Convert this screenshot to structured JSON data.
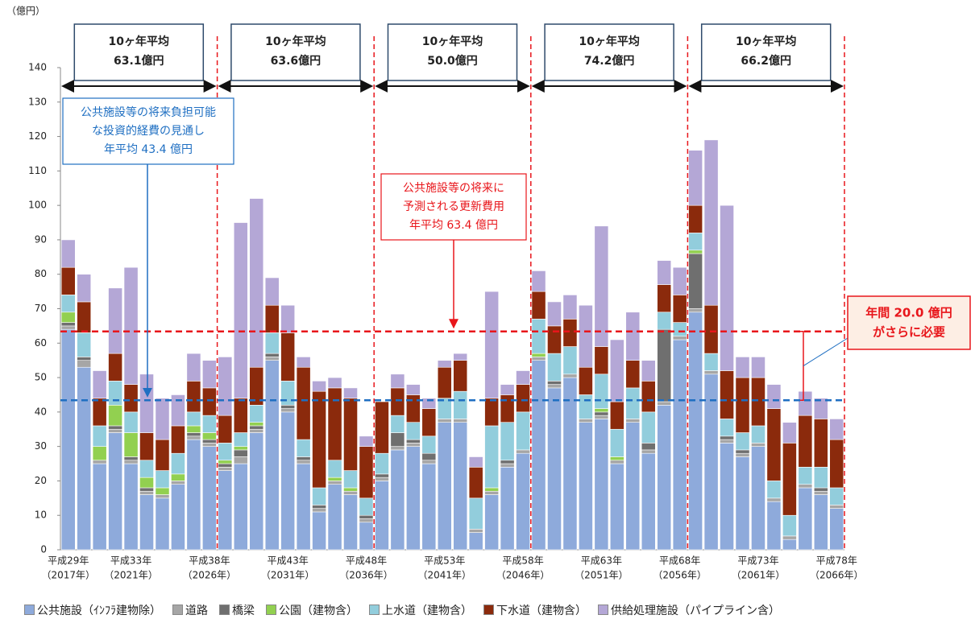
{
  "chart_data": {
    "type": "stacked_bar",
    "y_unit_label": "（億円）",
    "categories": [
      "平成29年",
      null,
      null,
      null,
      "平成33年",
      null,
      null,
      null,
      null,
      "平成38年",
      null,
      null,
      null,
      null,
      "平成43年",
      null,
      null,
      null,
      null,
      "平成48年",
      null,
      null,
      null,
      null,
      "平成53年",
      null,
      null,
      null,
      null,
      "平成58年",
      null,
      null,
      null,
      null,
      "平成63年",
      null,
      null,
      null,
      null,
      "平成68年",
      null,
      null,
      null,
      null,
      "平成73年",
      null,
      null,
      null,
      null,
      "平成78年"
    ],
    "category_sublabels": [
      "（2017年）",
      null,
      null,
      null,
      "（2021年）",
      null,
      null,
      null,
      null,
      "（2026年）",
      null,
      null,
      null,
      null,
      "（2031年）",
      null,
      null,
      null,
      null,
      "（2036年）",
      null,
      null,
      null,
      null,
      "（2041年）",
      null,
      null,
      null,
      null,
      "（2046年）",
      null,
      null,
      null,
      null,
      "（2051年）",
      null,
      null,
      null,
      null,
      "（2056年）",
      null,
      null,
      null,
      null,
      "（2061年）",
      null,
      null,
      null,
      null,
      "（2066年）"
    ],
    "series": [
      {
        "name": "公共施設（ｲﾝﾌﾗ建物除）",
        "color": "#8eaadb",
        "values": [
          64,
          53,
          25,
          34,
          25,
          16,
          15,
          19,
          32,
          30,
          23,
          25,
          34,
          55,
          40,
          25,
          11,
          19,
          16,
          8,
          20,
          29,
          30,
          25,
          37,
          37,
          5,
          16,
          24,
          28,
          55,
          47,
          50,
          37,
          38,
          25,
          37,
          28,
          42,
          61,
          69,
          51,
          31,
          27,
          30,
          14,
          3,
          18,
          16,
          12
        ]
      },
      {
        "name": "道路",
        "color": "#a6a6a6",
        "values": [
          1,
          2,
          1,
          1,
          1,
          1,
          1,
          1,
          1,
          1,
          1,
          2,
          1,
          1,
          1,
          1,
          1,
          1,
          1,
          1,
          1,
          1,
          1,
          1,
          1,
          1,
          1,
          1,
          1,
          1,
          1,
          1,
          1,
          1,
          1,
          1,
          1,
          1,
          1,
          1,
          1,
          1,
          1,
          1,
          1,
          1,
          1,
          1,
          1,
          1
        ]
      },
      {
        "name": "橋梁",
        "color": "#6f6f6f",
        "values": [
          1,
          1,
          0,
          1,
          1,
          1,
          0,
          0,
          1,
          1,
          1,
          2,
          1,
          1,
          1,
          1,
          1,
          0,
          0,
          1,
          1,
          4,
          1,
          2,
          0,
          0,
          0,
          0,
          1,
          0,
          0,
          1,
          0,
          0,
          1,
          0,
          0,
          2,
          21,
          0,
          16,
          0,
          1,
          1,
          0,
          0,
          0,
          0,
          1,
          0
        ]
      },
      {
        "name": "公園（建物含）",
        "color": "#92d050",
        "values": [
          3,
          0,
          4,
          6,
          7,
          3,
          2,
          2,
          2,
          2,
          1,
          1,
          1,
          0,
          0,
          0,
          0,
          1,
          1,
          0,
          0,
          0,
          0,
          0,
          0,
          0,
          0,
          1,
          0,
          0,
          1,
          0,
          0,
          0,
          1,
          1,
          0,
          0,
          0,
          0,
          1,
          0,
          0,
          0,
          0,
          0,
          0,
          0,
          0,
          0
        ]
      },
      {
        "name": "上水道（建物含）",
        "color": "#92cddc",
        "values": [
          5,
          7,
          6,
          7,
          6,
          5,
          5,
          6,
          4,
          5,
          5,
          4,
          5,
          6,
          7,
          5,
          5,
          5,
          5,
          5,
          6,
          5,
          5,
          5,
          6,
          8,
          9,
          18,
          11,
          11,
          10,
          8,
          8,
          7,
          10,
          8,
          9,
          9,
          5,
          4,
          5,
          5,
          5,
          5,
          5,
          5,
          6,
          5,
          6,
          5
        ]
      },
      {
        "name": "下水道（建物含）",
        "color": "#8b2a0c",
        "values": [
          8,
          9,
          8,
          8,
          8,
          8,
          9,
          8,
          9,
          8,
          8,
          10,
          11,
          8,
          14,
          21,
          28,
          21,
          21,
          15,
          15,
          8,
          8,
          8,
          9,
          9,
          9,
          8,
          8,
          8,
          8,
          8,
          8,
          8,
          8,
          8,
          8,
          9,
          8,
          8,
          8,
          14,
          14,
          16,
          14,
          21,
          21,
          15,
          14,
          14
        ]
      },
      {
        "name": "供給処理施設（パイプライン含）",
        "color": "#b4a7d6",
        "values": [
          8,
          8,
          8,
          19,
          34,
          17,
          12,
          9,
          8,
          8,
          17,
          51,
          49,
          8,
          8,
          3,
          3,
          3,
          3,
          3,
          0,
          4,
          3,
          3,
          2,
          2,
          3,
          31,
          3,
          4,
          6,
          7,
          7,
          18,
          35,
          18,
          14,
          6,
          7,
          8,
          16,
          48,
          48,
          6,
          6,
          7,
          6,
          7,
          6,
          6
        ]
      }
    ],
    "ylim": [
      0,
      140
    ],
    "yticks": [
      0,
      10,
      20,
      30,
      40,
      50,
      60,
      70,
      80,
      90,
      100,
      110,
      120,
      130,
      140
    ],
    "decade_averages": [
      {
        "label": "10ヶ年平均",
        "value": 63.1,
        "value_label": "63.1億円"
      },
      {
        "label": "10ヶ年平均",
        "value": 63.6,
        "value_label": "63.6億円"
      },
      {
        "label": "10ヶ年平均",
        "value": 50.0,
        "value_label": "50.0億円"
      },
      {
        "label": "10ヶ年平均",
        "value": 74.2,
        "value_label": "74.2億円"
      },
      {
        "label": "10ヶ年平均",
        "value": 66.2,
        "value_label": "66.2億円"
      }
    ],
    "reference_lines": [
      {
        "value": 63.4,
        "color": "#e8161b",
        "lines": [
          "公共施設等の将来に",
          "予測される更新費用",
          "年平均 63.4 億円"
        ]
      },
      {
        "value": 43.4,
        "color": "#1f6fc2",
        "lines": [
          "公共施設等の将来負担可能",
          "な投資的経費の見通し",
          "年平均 43.4 億円"
        ]
      }
    ],
    "gap_note": {
      "value": 20.0,
      "lines": [
        "年間 20.0 億円",
        "がさらに必要"
      ]
    }
  }
}
